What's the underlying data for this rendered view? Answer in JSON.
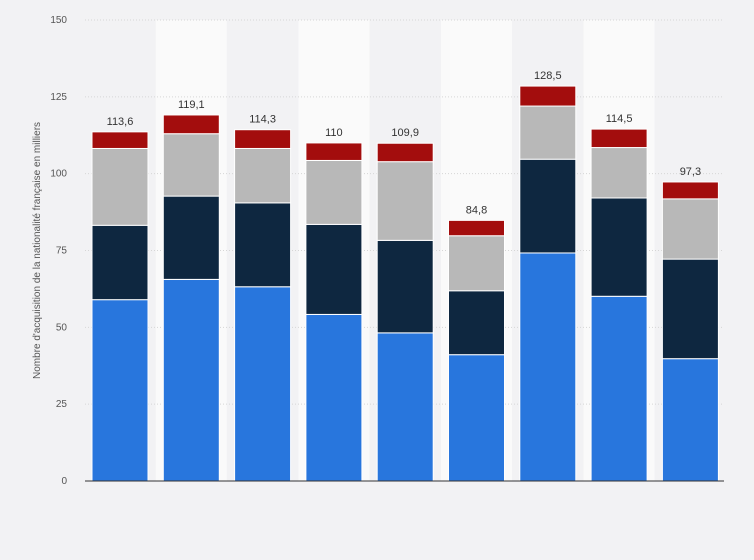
{
  "chart_data": {
    "type": "bar",
    "stacked": true,
    "title": "",
    "xlabel": "",
    "ylabel": "Nombre d'acquisition de la nationalité française en milliers",
    "ylim": [
      0,
      150
    ],
    "yticks": [
      0,
      25,
      50,
      75,
      100,
      125,
      150
    ],
    "grid": true,
    "categories": [
      "",
      "",
      "",
      "",
      "",
      "",
      "",
      "",
      ""
    ],
    "series": [
      {
        "color": "#2876dd",
        "values": [
          59,
          65.6,
          63.2,
          54.2,
          48.2,
          41.1,
          74.2,
          60.1,
          39.8
        ]
      },
      {
        "color": "#0e2740",
        "values": [
          24.2,
          27.1,
          27.3,
          29.3,
          30.1,
          20.8,
          30.5,
          32.0,
          32.4
        ]
      },
      {
        "color": "#b8b8b8",
        "values": [
          25.0,
          20.3,
          17.7,
          20.8,
          25.6,
          17.9,
          17.3,
          16.4,
          19.6
        ]
      },
      {
        "color": "#a30d0d",
        "values": [
          5.4,
          6.1,
          6.1,
          5.7,
          6.0,
          5.0,
          6.5,
          6.0,
          5.5
        ]
      }
    ],
    "totals": [
      "113,6",
      "119,1",
      "114,3",
      "110",
      "109,9",
      "84,8",
      "128,5",
      "114,5",
      "97,3"
    ]
  }
}
